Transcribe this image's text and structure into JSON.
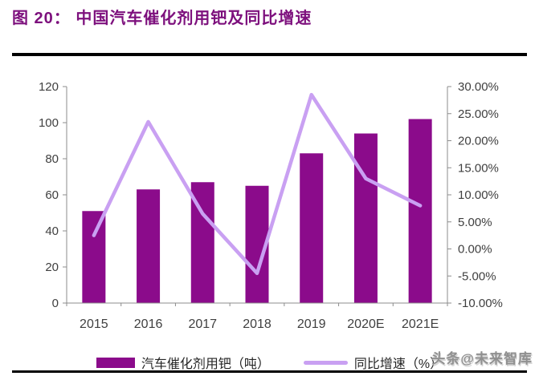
{
  "title": "图 20： 中国汽车催化剂用钯及同比增速",
  "watermark": "头条@未来智库",
  "colors": {
    "title": "#7D107D",
    "rule": "#000000",
    "bar": "#8B0B8B",
    "line": "#C9A0F2",
    "axis_line": "#8C8C8C",
    "axis_text": "#3F3F3F",
    "legend_text": "#262626",
    "watermark_text": "#909090"
  },
  "chart_data": {
    "type": "bar+line",
    "title": "中国汽车催化剂用钯及同比增速",
    "categories": [
      "2015",
      "2016",
      "2017",
      "2018",
      "2019",
      "2020E",
      "2021E"
    ],
    "series": [
      {
        "name": "汽车催化剂用钯（吨）",
        "type": "bar",
        "axis": "left",
        "values": [
          51,
          63,
          67,
          65,
          83,
          94,
          102
        ]
      },
      {
        "name": "同比增速（%）",
        "type": "line",
        "axis": "right",
        "values": [
          2.5,
          23.5,
          6.5,
          -4.5,
          28.5,
          13,
          8
        ]
      }
    ],
    "left_axis": {
      "min": 0,
      "max": 120,
      "step": 20,
      "tick_labels": [
        "0",
        "20",
        "40",
        "60",
        "80",
        "100",
        "120"
      ]
    },
    "right_axis": {
      "min": -10,
      "max": 30,
      "step": 5,
      "tick_labels": [
        "-10.00%",
        "-5.00%",
        "0.00%",
        "5.00%",
        "10.00%",
        "15.00%",
        "20.00%",
        "25.00%",
        "30.00%"
      ]
    },
    "grid": false,
    "legend_position": "bottom"
  }
}
